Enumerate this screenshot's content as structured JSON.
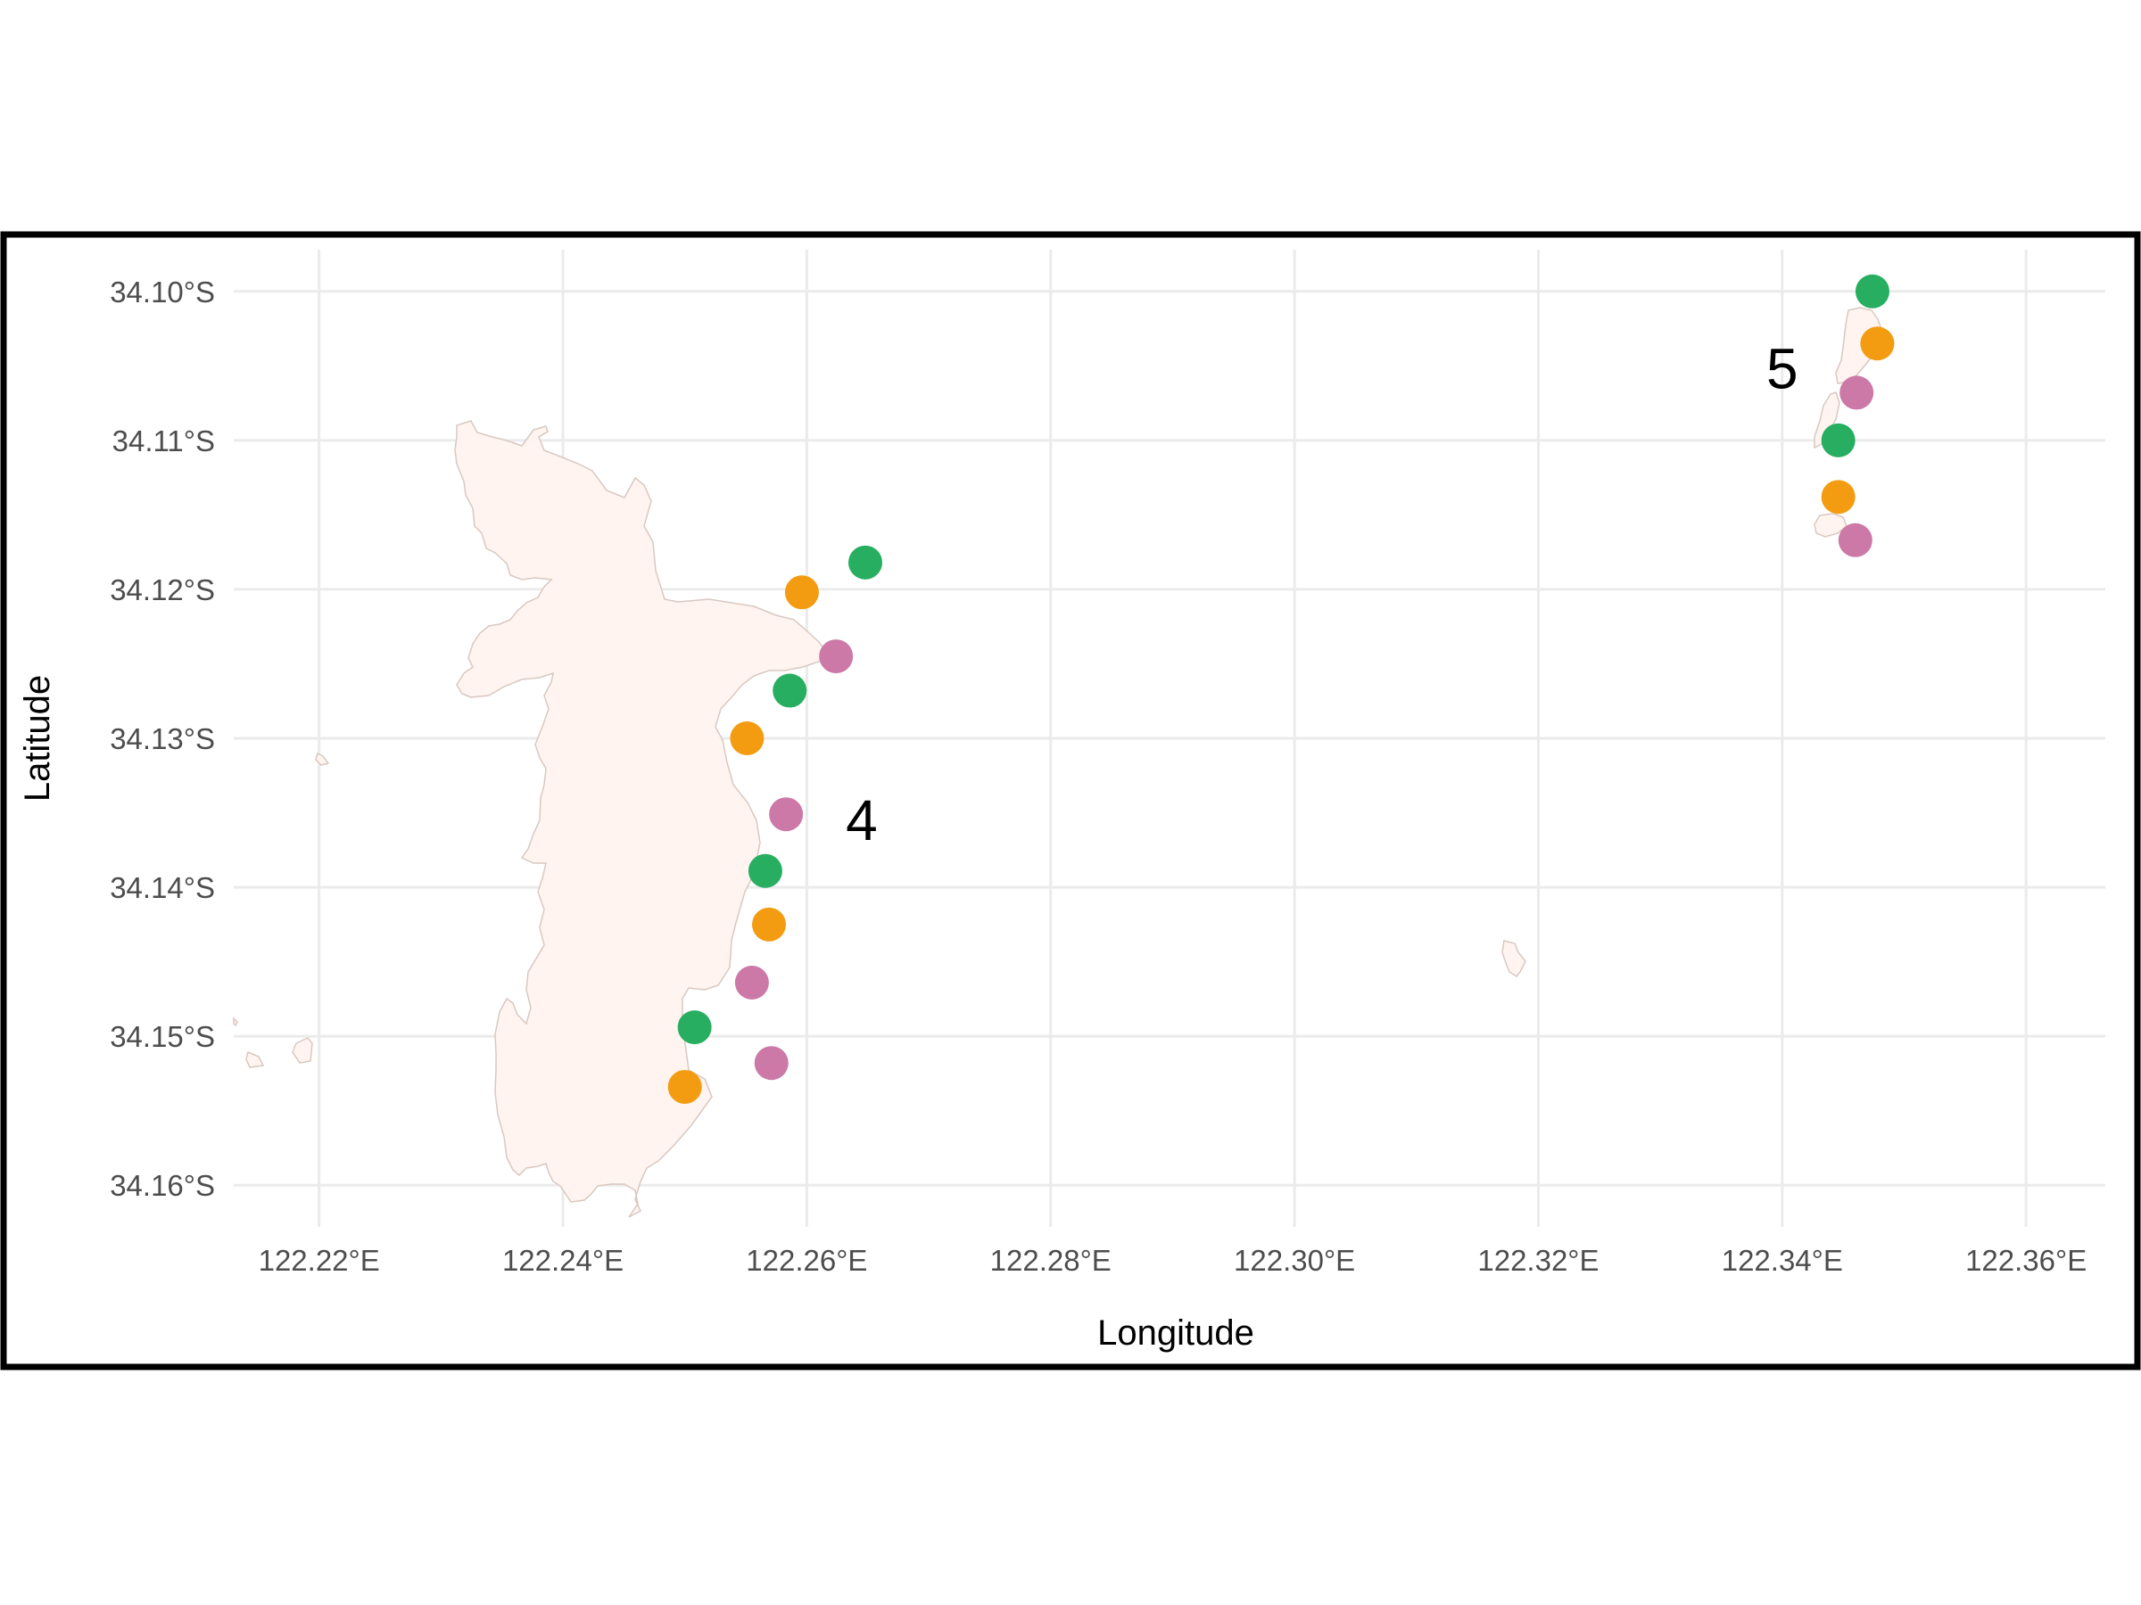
{
  "map": {
    "xlabel": "Longitude",
    "ylabel": "Latitude",
    "x_ticks": [
      {
        "value": 122.22,
        "label": "122.22°E"
      },
      {
        "value": 122.24,
        "label": "122.24°E"
      },
      {
        "value": 122.26,
        "label": "122.26°E"
      },
      {
        "value": 122.28,
        "label": "122.28°E"
      },
      {
        "value": 122.3,
        "label": "122.30°E"
      },
      {
        "value": 122.32,
        "label": "122.32°E"
      },
      {
        "value": 122.34,
        "label": "122.34°E"
      },
      {
        "value": 122.36,
        "label": "122.36°E"
      }
    ],
    "y_ticks": [
      {
        "value": -34.1,
        "label": "34.10°S"
      },
      {
        "value": -34.11,
        "label": "34.11°S"
      },
      {
        "value": -34.12,
        "label": "34.12°S"
      },
      {
        "value": -34.13,
        "label": "34.13°S"
      },
      {
        "value": -34.14,
        "label": "34.14°S"
      },
      {
        "value": -34.15,
        "label": "34.15°S"
      },
      {
        "value": -34.16,
        "label": "34.16°S"
      }
    ],
    "xlim": [
      122.213,
      122.3665
    ],
    "ylim": [
      -34.1628,
      -34.0972
    ],
    "grid": true,
    "colors": {
      "land_fill": "#fff4ef",
      "land_stroke": "#d9c8c0",
      "green": "#27ae60",
      "orange": "#f39c12",
      "pink": "#cc79a7",
      "panel_border": "#000000"
    },
    "site_labels": [
      {
        "text": "4",
        "lon": 122.2645,
        "lat": -34.1355
      },
      {
        "text": "5",
        "lon": 122.34,
        "lat": -34.1052
      }
    ],
    "points": [
      {
        "lon": 122.2648,
        "lat": -34.1182,
        "color": "green"
      },
      {
        "lon": 122.2596,
        "lat": -34.1202,
        "color": "orange"
      },
      {
        "lon": 122.2624,
        "lat": -34.1245,
        "color": "pink"
      },
      {
        "lon": 122.2586,
        "lat": -34.1268,
        "color": "green"
      },
      {
        "lon": 122.2551,
        "lat": -34.13,
        "color": "orange"
      },
      {
        "lon": 122.2583,
        "lat": -34.1351,
        "color": "pink"
      },
      {
        "lon": 122.2566,
        "lat": -34.1389,
        "color": "green"
      },
      {
        "lon": 122.2569,
        "lat": -34.1425,
        "color": "orange"
      },
      {
        "lon": 122.2555,
        "lat": -34.1464,
        "color": "pink"
      },
      {
        "lon": 122.2508,
        "lat": -34.1494,
        "color": "green"
      },
      {
        "lon": 122.2571,
        "lat": -34.1518,
        "color": "pink"
      },
      {
        "lon": 122.25,
        "lat": -34.1534,
        "color": "orange"
      },
      {
        "lon": 122.3474,
        "lat": -34.1,
        "color": "green"
      },
      {
        "lon": 122.3478,
        "lat": -34.1035,
        "color": "orange"
      },
      {
        "lon": 122.3461,
        "lat": -34.1068,
        "color": "pink"
      },
      {
        "lon": 122.3446,
        "lat": -34.11,
        "color": "green"
      },
      {
        "lon": 122.3446,
        "lat": -34.1138,
        "color": "orange"
      },
      {
        "lon": 122.346,
        "lat": -34.1167,
        "color": "pink"
      }
    ]
  }
}
